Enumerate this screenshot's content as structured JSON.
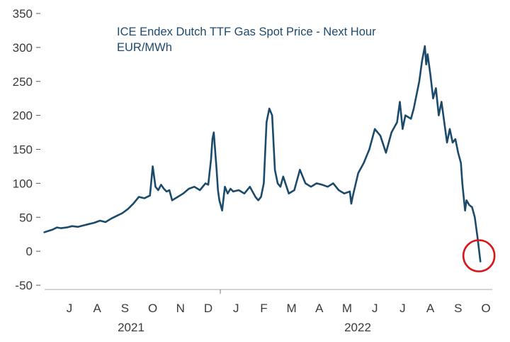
{
  "chart_data": {
    "type": "line",
    "title": "ICE Endex Dutch TTF Gas Spot Price -  Next Hour",
    "subtitle": "EUR/MWh",
    "ylim": [
      -50,
      350
    ],
    "yticks": [
      -50,
      0,
      50,
      100,
      150,
      200,
      250,
      300,
      350
    ],
    "month_labels": [
      "J",
      "A",
      "S",
      "O",
      "N",
      "D",
      "J",
      "F",
      "M",
      "A",
      "M",
      "J",
      "J",
      "A",
      "S",
      "O"
    ],
    "year_labels": [
      "2021",
      "2022"
    ],
    "line_color": "#1b4a6b",
    "highlight_color": "#d9161b",
    "series": [
      {
        "name": "TTF spot price",
        "x": [
          0,
          0.15,
          0.3,
          0.45,
          0.6,
          0.8,
          1.0,
          1.2,
          1.4,
          1.6,
          1.8,
          2.0,
          2.2,
          2.4,
          2.6,
          2.8,
          3.0,
          3.2,
          3.4,
          3.6,
          3.8,
          3.9,
          4.0,
          4.1,
          4.2,
          4.3,
          4.4,
          4.5,
          4.6,
          4.8,
          5.0,
          5.2,
          5.4,
          5.6,
          5.8,
          5.9,
          6.0,
          6.05,
          6.1,
          6.2,
          6.25,
          6.3,
          6.4,
          6.5,
          6.6,
          6.7,
          6.8,
          7.0,
          7.2,
          7.4,
          7.6,
          7.7,
          7.8,
          7.9,
          8.0,
          8.1,
          8.2,
          8.3,
          8.4,
          8.5,
          8.6,
          8.8,
          9.0,
          9.2,
          9.4,
          9.6,
          9.8,
          10.0,
          10.2,
          10.4,
          10.6,
          10.8,
          11.0,
          11.05,
          11.1,
          11.3,
          11.5,
          11.7,
          11.9,
          12.1,
          12.3,
          12.5,
          12.7,
          12.8,
          12.9,
          13.0,
          13.2,
          13.3,
          13.4,
          13.5,
          13.6,
          13.7,
          13.75,
          13.8,
          13.9,
          14.0,
          14.1,
          14.2,
          14.3,
          14.4,
          14.5,
          14.6,
          14.7,
          14.8,
          14.9,
          15.0,
          15.05,
          15.1,
          15.15,
          15.2,
          15.3,
          15.4,
          15.5,
          15.6,
          15.7
        ],
        "values": [
          28,
          30,
          32,
          35,
          34,
          35,
          37,
          36,
          38,
          40,
          42,
          45,
          43,
          48,
          52,
          56,
          62,
          70,
          80,
          78,
          82,
          125,
          95,
          90,
          98,
          92,
          88,
          90,
          75,
          80,
          85,
          92,
          95,
          90,
          100,
          98,
          135,
          165,
          175,
          120,
          90,
          75,
          60,
          95,
          85,
          92,
          88,
          90,
          85,
          95,
          80,
          75,
          80,
          100,
          190,
          210,
          200,
          120,
          100,
          95,
          110,
          85,
          90,
          120,
          100,
          95,
          100,
          98,
          95,
          100,
          90,
          85,
          88,
          70,
          80,
          115,
          130,
          150,
          180,
          170,
          145,
          175,
          190,
          220,
          180,
          200,
          195,
          210,
          230,
          250,
          280,
          302,
          275,
          290,
          260,
          225,
          240,
          200,
          220,
          190,
          160,
          180,
          160,
          165,
          145,
          130,
          100,
          80,
          60,
          75,
          68,
          65,
          50,
          20,
          -15
        ]
      }
    ]
  }
}
